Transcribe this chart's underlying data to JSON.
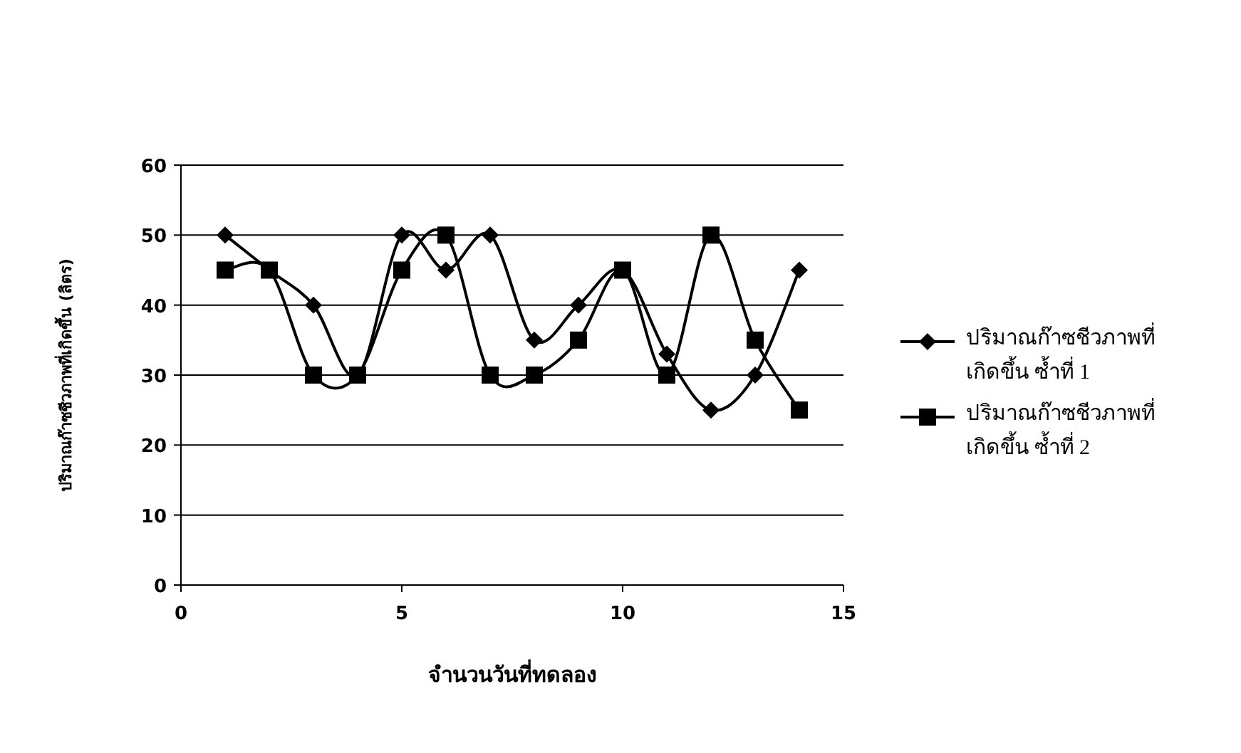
{
  "chart_data": {
    "type": "line",
    "xlabel": "จำนวนวันที่ทดลอง",
    "ylabel": "ปริมาณก๊าซชีวภาพที่เกิดขึ้น (ลิตร)",
    "x": [
      1,
      2,
      3,
      4,
      5,
      6,
      7,
      8,
      9,
      10,
      11,
      12,
      13,
      14
    ],
    "series": [
      {
        "name": "ปริมาณก๊าซชีวภาพที่เกิดขึ้น  ซ้ำที่ 1",
        "color": "#000000",
        "marker": "diamond",
        "values": [
          50,
          45,
          40,
          30,
          50,
          45,
          50,
          35,
          40,
          45,
          33,
          25,
          30,
          45
        ]
      },
      {
        "name": "ปริมาณก๊าซชีวภาพที่เกิดขึ้น  ซ้ำที่ 2",
        "color": "#000000",
        "marker": "square",
        "values": [
          45,
          45,
          30,
          30,
          45,
          50,
          30,
          30,
          35,
          45,
          30,
          50,
          35,
          25
        ]
      }
    ],
    "xlim": [
      0,
      15
    ],
    "xticks": [
      0,
      5,
      10,
      15
    ],
    "ylim": [
      0,
      60
    ],
    "yticks": [
      0,
      10,
      20,
      30,
      40,
      50,
      60
    ],
    "grid": "y",
    "legend": "right",
    "line_style": "solid"
  }
}
